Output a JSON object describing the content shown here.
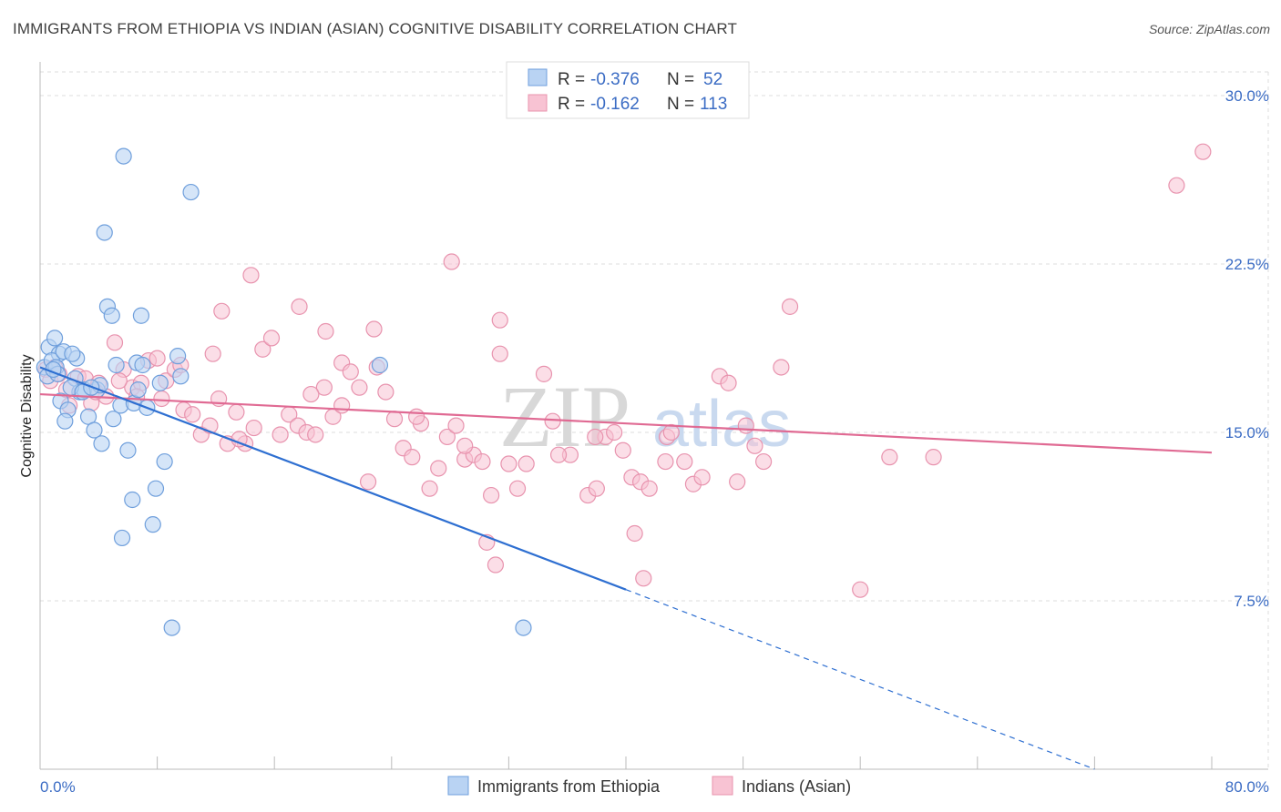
{
  "title": "IMMIGRANTS FROM ETHIOPIA VS INDIAN (ASIAN) COGNITIVE DISABILITY CORRELATION CHART",
  "source": "Source: ZipAtlas.com",
  "watermark": {
    "part1": "ZIP",
    "part2": "atlas"
  },
  "colors": {
    "blue_fill": "#b9d3f3",
    "blue_stroke": "#6f9fdc",
    "blue_line": "#2e6fd1",
    "pink_fill": "#f8c3d3",
    "pink_stroke": "#e893ae",
    "pink_line": "#e06a93",
    "grid": "#dddddd",
    "axis_label": "#3b6cc4"
  },
  "legend": {
    "series1": {
      "r_label": "R = ",
      "r_value": "-0.376",
      "n_label": "N = ",
      "n_value": "52"
    },
    "series2": {
      "r_label": "R = ",
      "r_value": "-0.162",
      "n_label": "N = ",
      "n_value": "113"
    }
  },
  "chart_data": {
    "type": "scatter",
    "title": "IMMIGRANTS FROM ETHIOPIA VS INDIAN (ASIAN) COGNITIVE DISABILITY CORRELATION CHART",
    "xlabel": "",
    "ylabel": "Cognitive Disability",
    "xlim": [
      0,
      80
    ],
    "ylim": [
      0,
      31.5
    ],
    "x_tick_labels": [
      "0.0%",
      "80.0%"
    ],
    "y_ticks": [
      7.5,
      15.0,
      22.5,
      30.0
    ],
    "y_tick_labels": [
      "7.5%",
      "15.0%",
      "22.5%",
      "30.0%"
    ],
    "grid": true,
    "legend_placement": "top-center",
    "series": [
      {
        "name": "Immigrants from Ethiopia",
        "color": "#6f9fdc",
        "trend": {
          "x0": 0,
          "y0": 17.9,
          "x1": 40,
          "y1": 8.0,
          "dashed_to_x": 72,
          "dashed_to_y": 0
        },
        "points": [
          [
            0.3,
            17.9
          ],
          [
            0.6,
            18.8
          ],
          [
            1.0,
            19.2
          ],
          [
            1.3,
            18.5
          ],
          [
            0.8,
            18.2
          ],
          [
            1.6,
            18.6
          ],
          [
            0.5,
            17.5
          ],
          [
            1.1,
            17.9
          ],
          [
            2.4,
            17.4
          ],
          [
            2.7,
            16.8
          ],
          [
            3.0,
            16.9
          ],
          [
            1.4,
            16.4
          ],
          [
            1.9,
            16.0
          ],
          [
            2.1,
            17.0
          ],
          [
            1.7,
            15.5
          ],
          [
            3.3,
            15.7
          ],
          [
            3.7,
            15.1
          ],
          [
            4.2,
            14.5
          ],
          [
            5.0,
            15.6
          ],
          [
            5.5,
            16.2
          ],
          [
            6.4,
            16.3
          ],
          [
            7.3,
            16.1
          ],
          [
            8.2,
            17.2
          ],
          [
            6.7,
            16.9
          ],
          [
            6.0,
            14.2
          ],
          [
            8.5,
            13.7
          ],
          [
            7.9,
            12.5
          ],
          [
            6.3,
            12.0
          ],
          [
            7.7,
            10.9
          ],
          [
            5.6,
            10.3
          ],
          [
            9.0,
            6.3
          ],
          [
            33.0,
            6.3
          ],
          [
            4.6,
            20.6
          ],
          [
            4.9,
            20.2
          ],
          [
            6.9,
            20.2
          ],
          [
            4.4,
            23.9
          ],
          [
            5.7,
            27.3
          ],
          [
            10.3,
            25.7
          ],
          [
            9.4,
            18.4
          ],
          [
            6.6,
            18.1
          ],
          [
            7.0,
            18.0
          ],
          [
            9.6,
            17.5
          ],
          [
            23.2,
            18.0
          ],
          [
            2.5,
            18.3
          ],
          [
            3.9,
            16.9
          ],
          [
            4.1,
            17.1
          ],
          [
            2.9,
            16.8
          ],
          [
            1.2,
            17.6
          ],
          [
            0.9,
            17.8
          ],
          [
            2.2,
            18.5
          ],
          [
            3.5,
            17.0
          ],
          [
            5.2,
            18.0
          ]
        ]
      },
      {
        "name": "Indians (Asian)",
        "color": "#e893ae",
        "trend": {
          "x0": 0,
          "y0": 16.7,
          "x1": 80,
          "y1": 14.1
        },
        "points": [
          [
            0.4,
            17.8
          ],
          [
            0.7,
            17.3
          ],
          [
            1.0,
            17.9
          ],
          [
            1.3,
            17.6
          ],
          [
            1.8,
            16.9
          ],
          [
            2.6,
            17.5
          ],
          [
            3.1,
            17.4
          ],
          [
            3.5,
            16.3
          ],
          [
            4.0,
            17.2
          ],
          [
            4.5,
            16.6
          ],
          [
            5.1,
            19.0
          ],
          [
            5.7,
            17.8
          ],
          [
            6.3,
            17.0
          ],
          [
            6.9,
            17.2
          ],
          [
            7.4,
            18.2
          ],
          [
            8.0,
            18.3
          ],
          [
            8.6,
            17.3
          ],
          [
            9.2,
            17.8
          ],
          [
            9.8,
            16.0
          ],
          [
            10.4,
            15.8
          ],
          [
            11.0,
            14.9
          ],
          [
            11.6,
            15.3
          ],
          [
            12.2,
            16.5
          ],
          [
            12.8,
            14.5
          ],
          [
            13.4,
            15.9
          ],
          [
            14.0,
            14.5
          ],
          [
            14.6,
            15.2
          ],
          [
            15.2,
            18.7
          ],
          [
            15.8,
            19.2
          ],
          [
            16.4,
            14.9
          ],
          [
            17.0,
            15.8
          ],
          [
            17.6,
            15.3
          ],
          [
            18.2,
            15.0
          ],
          [
            18.8,
            14.9
          ],
          [
            19.4,
            17.0
          ],
          [
            20.0,
            15.7
          ],
          [
            20.6,
            18.1
          ],
          [
            21.2,
            17.7
          ],
          [
            21.8,
            17.0
          ],
          [
            22.4,
            12.8
          ],
          [
            23.0,
            17.9
          ],
          [
            23.6,
            16.8
          ],
          [
            24.2,
            15.6
          ],
          [
            24.8,
            14.3
          ],
          [
            25.4,
            13.9
          ],
          [
            26.0,
            15.4
          ],
          [
            26.6,
            12.5
          ],
          [
            27.2,
            13.4
          ],
          [
            27.8,
            14.8
          ],
          [
            28.4,
            15.3
          ],
          [
            29.0,
            13.8
          ],
          [
            29.6,
            14.0
          ],
          [
            30.2,
            13.7
          ],
          [
            30.8,
            12.2
          ],
          [
            31.4,
            18.5
          ],
          [
            32.0,
            13.6
          ],
          [
            32.6,
            12.5
          ],
          [
            33.2,
            13.6
          ],
          [
            34.4,
            17.6
          ],
          [
            35.0,
            15.5
          ],
          [
            36.2,
            14.0
          ],
          [
            37.4,
            12.2
          ],
          [
            38.0,
            12.5
          ],
          [
            38.6,
            14.8
          ],
          [
            39.2,
            15.0
          ],
          [
            39.8,
            14.2
          ],
          [
            40.4,
            13.0
          ],
          [
            41.0,
            12.8
          ],
          [
            41.6,
            12.5
          ],
          [
            42.8,
            14.8
          ],
          [
            44.0,
            13.7
          ],
          [
            44.6,
            12.7
          ],
          [
            45.2,
            13.0
          ],
          [
            46.4,
            17.5
          ],
          [
            47.0,
            17.2
          ],
          [
            47.6,
            12.8
          ],
          [
            48.2,
            15.3
          ],
          [
            48.8,
            14.4
          ],
          [
            49.4,
            13.7
          ],
          [
            50.6,
            17.9
          ],
          [
            51.2,
            20.6
          ],
          [
            56.0,
            8.0
          ],
          [
            40.6,
            10.5
          ],
          [
            41.2,
            8.5
          ],
          [
            30.5,
            10.1
          ],
          [
            31.1,
            9.1
          ],
          [
            22.8,
            19.6
          ],
          [
            14.4,
            22.0
          ],
          [
            12.4,
            20.4
          ],
          [
            17.7,
            20.6
          ],
          [
            19.5,
            19.5
          ],
          [
            28.1,
            22.6
          ],
          [
            31.4,
            20.0
          ],
          [
            18.5,
            16.7
          ],
          [
            20.6,
            16.2
          ],
          [
            25.7,
            15.7
          ],
          [
            29.0,
            14.4
          ],
          [
            35.4,
            14.0
          ],
          [
            37.9,
            14.8
          ],
          [
            42.7,
            13.7
          ],
          [
            43.1,
            15.0
          ],
          [
            58.0,
            13.9
          ],
          [
            61.0,
            13.9
          ],
          [
            77.6,
            26.0
          ],
          [
            79.4,
            27.5
          ],
          [
            3.8,
            16.8
          ],
          [
            6.6,
            16.6
          ],
          [
            9.6,
            18.0
          ],
          [
            2.0,
            16.2
          ],
          [
            5.4,
            17.3
          ],
          [
            8.3,
            16.5
          ],
          [
            11.8,
            18.5
          ],
          [
            13.6,
            14.7
          ]
        ]
      }
    ]
  },
  "bottom_legend": {
    "series1": "Immigrants from Ethiopia",
    "series2": "Indians (Asian)"
  }
}
